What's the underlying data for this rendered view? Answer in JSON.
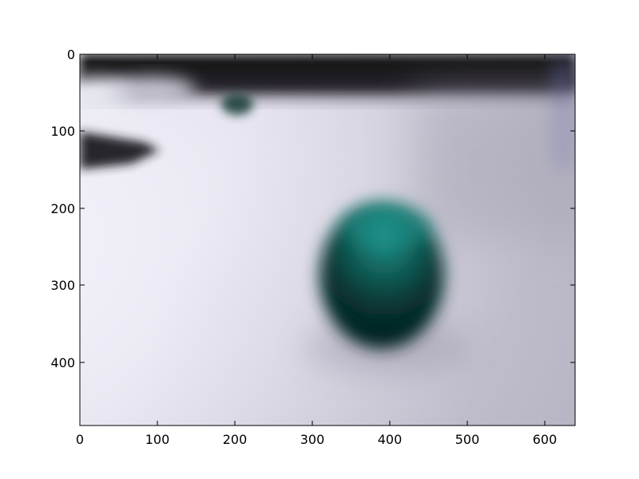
{
  "figure": {
    "image": {
      "description_keys": [
        "desk-surface",
        "blurred-background",
        "green-ball"
      ],
      "dominant_colors": {
        "surface": "#e6e4ee",
        "shadow": "#b7b5c4",
        "background_dark": "#1c1a20",
        "ball_dark": "#0d1f1e",
        "ball_light": "#1a8a82"
      }
    },
    "x_axis": {
      "ticks": [
        "0",
        "100",
        "200",
        "300",
        "400",
        "500",
        "600"
      ],
      "range": [
        0,
        640
      ]
    },
    "y_axis": {
      "ticks": [
        "0",
        "100",
        "200",
        "300",
        "400"
      ],
      "range": [
        0,
        480
      ],
      "inverted": true
    }
  }
}
